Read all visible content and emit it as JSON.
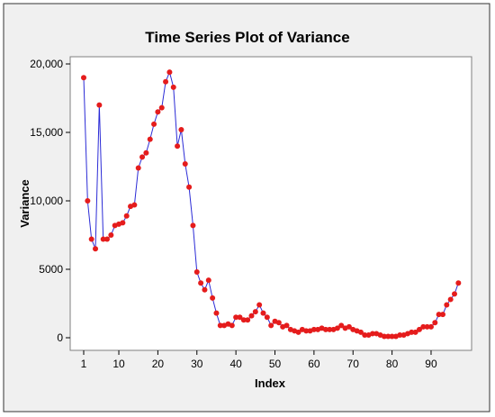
{
  "chart_data": {
    "type": "line",
    "title": "Time Series Plot of Variance",
    "xlabel": "Index",
    "ylabel": "Variance",
    "xlim": [
      1,
      96
    ],
    "ylim": [
      0,
      20000
    ],
    "x_ticks": [
      1,
      10,
      20,
      30,
      40,
      50,
      60,
      70,
      80,
      90
    ],
    "y_ticks": [
      0,
      5000,
      10000,
      15000,
      20000
    ],
    "y_tick_labels": [
      "0",
      "5000",
      "10,000",
      "15,000",
      "20,000"
    ],
    "grid": false,
    "line_color": "#2b2bd6",
    "marker_color": "#e51c1c",
    "frame_color": "#7f7f7f",
    "plot_background": "#ffffff",
    "outer_background": "#f0f0f0",
    "series": [
      {
        "values": [
          19000,
          10000,
          7200,
          6500,
          17000,
          7200,
          7200,
          7500,
          8200,
          8300,
          8400,
          8900,
          9600,
          9700,
          12400,
          13200,
          13500,
          14500,
          15600,
          16500,
          16800,
          18700,
          19400,
          18300,
          14000,
          15200,
          12700,
          11000,
          8200,
          4800,
          4000,
          3500,
          4200,
          2900,
          1800,
          900,
          900,
          1000,
          900,
          1500,
          1500,
          1300,
          1300,
          1600,
          1900,
          2400,
          1800,
          1500,
          900,
          1200,
          1100,
          800,
          900,
          600,
          500,
          400,
          600,
          500,
          500,
          600,
          600,
          700,
          600,
          600,
          600,
          700,
          900,
          700,
          800,
          600,
          500,
          400,
          200,
          200,
          300,
          300,
          200,
          100,
          100,
          100,
          100,
          200,
          200,
          300,
          400,
          400,
          600,
          800,
          800,
          800,
          1100,
          1700,
          1700,
          2400,
          2800,
          3200,
          4000
        ]
      }
    ]
  }
}
